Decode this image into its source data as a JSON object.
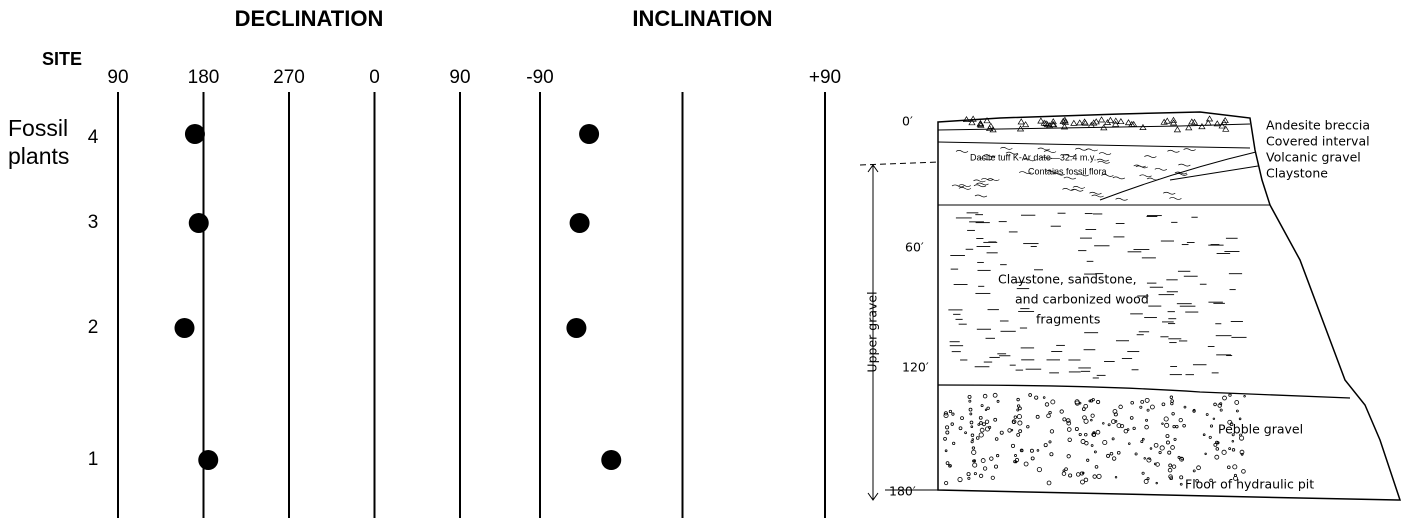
{
  "chart_data": [
    {
      "type": "scatter",
      "title": "DECLINATION",
      "y_label": "SITE",
      "annotation": "Fossil\nplants",
      "categories": [
        "4",
        "3",
        "2",
        "1"
      ],
      "values": [
        171,
        175,
        160,
        185
      ],
      "color": "#000000",
      "xlim": [
        90,
        450
      ],
      "xticks": [
        90,
        180,
        270,
        {
          "value": 360,
          "label": "0"
        },
        {
          "value": 450,
          "label": "90"
        }
      ]
    },
    {
      "type": "scatter",
      "title": "INCLINATION",
      "categories": [
        "4",
        "3",
        "2",
        "1"
      ],
      "values": [
        -59,
        -65,
        -67,
        -45
      ],
      "color": "#000000",
      "xlim": [
        -90,
        90
      ],
      "xticks": [
        -90,
        {
          "value": 0,
          "label": null
        },
        {
          "value": 90,
          "label": "+90"
        }
      ]
    }
  ],
  "diagram": {
    "depths": [
      "0′",
      "60′",
      "120′",
      "180′"
    ],
    "side_label": "Upper gravel",
    "layers": [
      "Andesite breccia",
      "Covered interval",
      "Volcanic gravel",
      "Claystone"
    ],
    "tuff_label": "Dacite tuff K-Ar date—32.4 m.y.",
    "flora_label": "Contains fossil flora",
    "middle_label": [
      "Claystone, sandstone,",
      "and carbonized wood",
      "fragments"
    ],
    "pebble_label": "Pebble gravel",
    "floor_label": "Floor of hydraulic pit"
  }
}
